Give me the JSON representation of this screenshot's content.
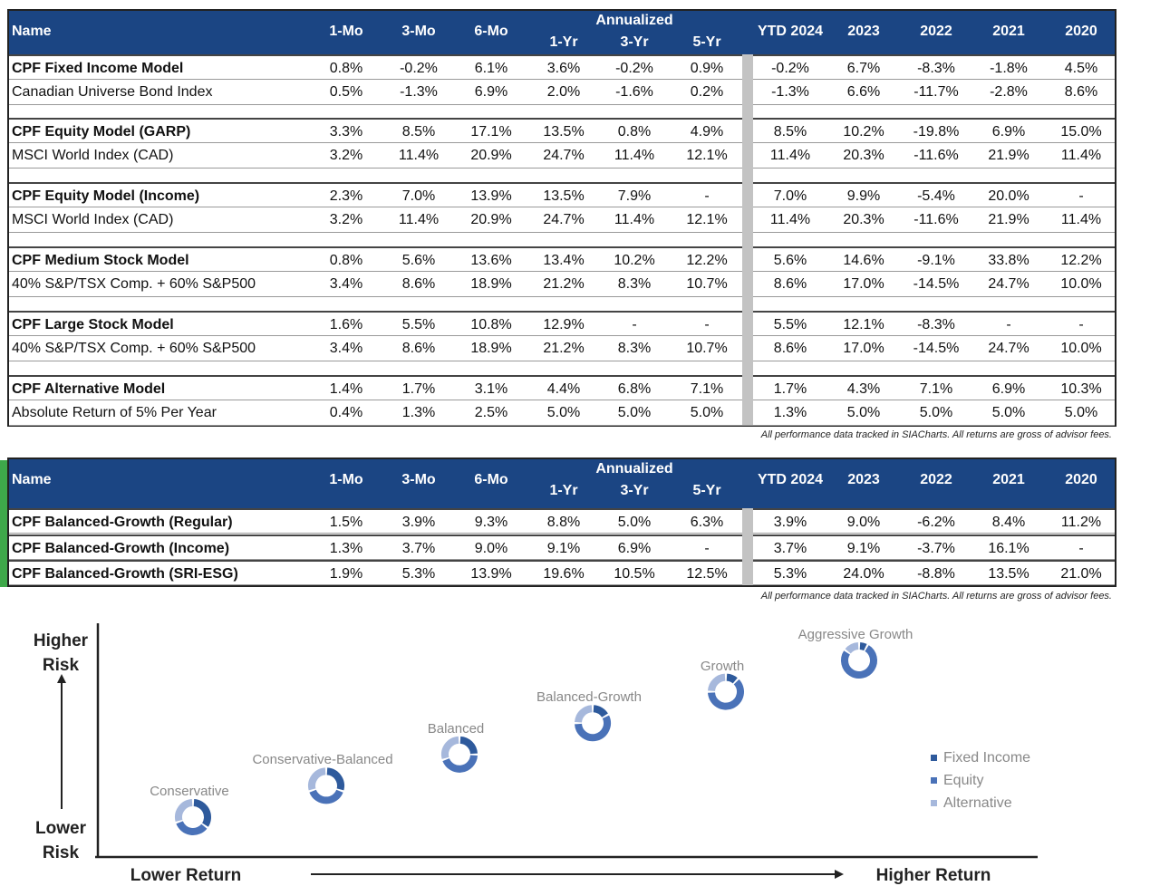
{
  "columns": {
    "name": "Name",
    "annualized": "Annualized",
    "cols": [
      "1-Mo",
      "3-Mo",
      "6-Mo",
      "1-Yr",
      "3-Yr",
      "5-Yr",
      "YTD 2024",
      "2023",
      "2022",
      "2021",
      "2020"
    ]
  },
  "table1": {
    "groups": [
      [
        {
          "name": "CPF Fixed Income Model",
          "bold": true,
          "values": [
            "0.8%",
            "-0.2%",
            "6.1%",
            "3.6%",
            "-0.2%",
            "0.9%",
            "-0.2%",
            "6.7%",
            "-8.3%",
            "-1.8%",
            "4.5%"
          ]
        },
        {
          "name": "Canadian Universe Bond Index",
          "values": [
            "0.5%",
            "-1.3%",
            "6.9%",
            "2.0%",
            "-1.6%",
            "0.2%",
            "-1.3%",
            "6.6%",
            "-11.7%",
            "-2.8%",
            "8.6%"
          ]
        }
      ],
      [
        {
          "name": "CPF Equity Model (GARP)",
          "bold": true,
          "values": [
            "3.3%",
            "8.5%",
            "17.1%",
            "13.5%",
            "0.8%",
            "4.9%",
            "8.5%",
            "10.2%",
            "-19.8%",
            "6.9%",
            "15.0%"
          ]
        },
        {
          "name": "MSCI World Index (CAD)",
          "values": [
            "3.2%",
            "11.4%",
            "20.9%",
            "24.7%",
            "11.4%",
            "12.1%",
            "11.4%",
            "20.3%",
            "-11.6%",
            "21.9%",
            "11.4%"
          ]
        }
      ],
      [
        {
          "name": "CPF Equity Model (Income)",
          "bold": true,
          "values": [
            "2.3%",
            "7.0%",
            "13.9%",
            "13.5%",
            "7.9%",
            "-",
            "7.0%",
            "9.9%",
            "-5.4%",
            "20.0%",
            "-"
          ]
        },
        {
          "name": "MSCI World Index (CAD)",
          "values": [
            "3.2%",
            "11.4%",
            "20.9%",
            "24.7%",
            "11.4%",
            "12.1%",
            "11.4%",
            "20.3%",
            "-11.6%",
            "21.9%",
            "11.4%"
          ]
        }
      ],
      [
        {
          "name": "CPF Medium Stock Model",
          "bold": true,
          "values": [
            "0.8%",
            "5.6%",
            "13.6%",
            "13.4%",
            "10.2%",
            "12.2%",
            "5.6%",
            "14.6%",
            "-9.1%",
            "33.8%",
            "12.2%"
          ]
        },
        {
          "name": "40% S&P/TSX Comp. + 60% S&P500",
          "values": [
            "3.4%",
            "8.6%",
            "18.9%",
            "21.2%",
            "8.3%",
            "10.7%",
            "8.6%",
            "17.0%",
            "-14.5%",
            "24.7%",
            "10.0%"
          ]
        }
      ],
      [
        {
          "name": "CPF Large Stock Model",
          "bold": true,
          "values": [
            "1.6%",
            "5.5%",
            "10.8%",
            "12.9%",
            "-",
            "-",
            "5.5%",
            "12.1%",
            "-8.3%",
            "-",
            "-"
          ]
        },
        {
          "name": "40% S&P/TSX Comp. + 60% S&P500",
          "values": [
            "3.4%",
            "8.6%",
            "18.9%",
            "21.2%",
            "8.3%",
            "10.7%",
            "8.6%",
            "17.0%",
            "-14.5%",
            "24.7%",
            "10.0%"
          ]
        }
      ],
      [
        {
          "name": "CPF Alternative Model",
          "bold": true,
          "values": [
            "1.4%",
            "1.7%",
            "3.1%",
            "4.4%",
            "6.8%",
            "7.1%",
            "1.7%",
            "4.3%",
            "7.1%",
            "6.9%",
            "10.3%"
          ]
        },
        {
          "name": "Absolute Return of 5% Per Year",
          "values": [
            "0.4%",
            "1.3%",
            "2.5%",
            "5.0%",
            "5.0%",
            "5.0%",
            "1.3%",
            "5.0%",
            "5.0%",
            "5.0%",
            "5.0%"
          ]
        }
      ]
    ],
    "footnote": "All performance data tracked in SIACharts. All returns are gross of advisor fees."
  },
  "table2": {
    "rows": [
      {
        "name": "CPF Balanced-Growth (Regular)",
        "bold": true,
        "values": [
          "1.5%",
          "3.9%",
          "9.3%",
          "8.8%",
          "5.0%",
          "6.3%",
          "3.9%",
          "9.0%",
          "-6.2%",
          "8.4%",
          "11.2%"
        ]
      },
      {
        "name": "CPF Balanced-Growth (Income)",
        "bold": true,
        "values": [
          "1.3%",
          "3.7%",
          "9.0%",
          "9.1%",
          "6.9%",
          "-",
          "3.7%",
          "9.1%",
          "-3.7%",
          "16.1%",
          "-"
        ]
      },
      {
        "name": "CPF Balanced-Growth (SRI-ESG)",
        "bold": true,
        "values": [
          "1.9%",
          "5.3%",
          "13.9%",
          "19.6%",
          "10.5%",
          "12.5%",
          "5.3%",
          "24.0%",
          "-8.8%",
          "13.5%",
          "21.0%"
        ]
      }
    ],
    "footnote": "All performance data tracked in SIACharts. All returns are gross of advisor fees."
  },
  "colors": {
    "header": "#1b4583",
    "fixed_income": "#2e5a9c",
    "equity": "#4a72b8",
    "alternative": "#a6b8dc",
    "green_bar": "#3ea84a"
  },
  "chart_data": {
    "type": "scatter",
    "ylabel_top": "Higher Risk",
    "ylabel_bottom": "Lower Risk",
    "xlabel_left": "Lower Return",
    "xlabel_right": "Higher Return",
    "legend": [
      "Fixed Income",
      "Equity",
      "Alternative"
    ],
    "legend_position": "right",
    "points": [
      {
        "label": "Conservative",
        "rank": 1,
        "mix": [
          35,
          35,
          30
        ]
      },
      {
        "label": "Conservative-Balanced",
        "rank": 2,
        "mix": [
          30,
          40,
          30
        ]
      },
      {
        "label": "Balanced",
        "rank": 3,
        "mix": [
          25,
          45,
          30
        ]
      },
      {
        "label": "Balanced-Growth",
        "rank": 4,
        "mix": [
          17,
          58,
          25
        ]
      },
      {
        "label": "Growth",
        "rank": 5,
        "mix": [
          12,
          63,
          25
        ]
      },
      {
        "label": "Aggressive Growth",
        "rank": 6,
        "mix": [
          8,
          77,
          15
        ]
      }
    ]
  }
}
